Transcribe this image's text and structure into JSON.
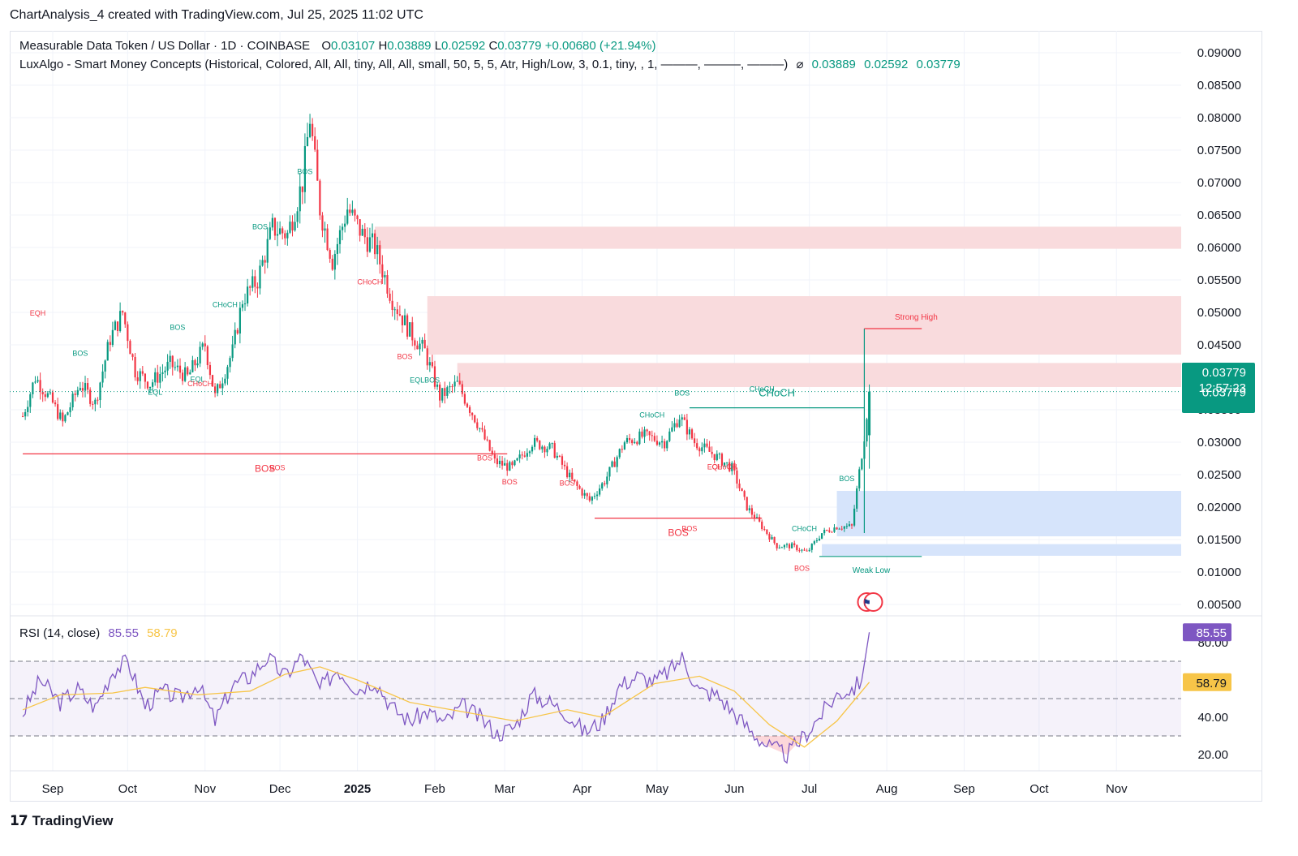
{
  "header": {
    "credit": "ChartAnalysis_4 created with TradingView.com, Jul 25, 2025 11:02 UTC"
  },
  "legend": {
    "symbol": "Measurable Data Token / US Dollar · 1D · COINBASE",
    "o_label": "O",
    "o": "0.03107",
    "h_label": "H",
    "h": "0.03889",
    "l_label": "L",
    "l": "0.02592",
    "c_label": "C",
    "c": "0.03779",
    "change": "+0.00680 (+21.94%)",
    "indicator": "LuxAlgo - Smart Money Concepts (Historical, Colored, All, All, tiny, All, All, small, 50, 5, 5, Atr, High/Low, 3, 0.1, tiny, , 1, ———, ———, ———)",
    "ind_values": [
      "0.03889",
      "0.02592",
      "0.03779"
    ],
    "rsi_label": "RSI (14, close)",
    "rsi_value": "85.55",
    "rsi_ma_value": "58.79"
  },
  "price_badge": {
    "price": "0.03779",
    "countdown": "12:57:23",
    "price2": "0.03779"
  },
  "rsi_badges": {
    "rsi": "85.55",
    "ma": "58.79"
  },
  "footer": {
    "brand": "TradingView"
  },
  "colors": {
    "up": "#089981",
    "down": "#f23645",
    "rsi": "#7e57c2",
    "rsi_ma": "#f7c548",
    "supply": "#f9d9db",
    "demand": "#d4e3fb"
  },
  "chart_data": {
    "type": "candlestick",
    "title": "Measurable Data Token / US Dollar · 1D · COINBASE",
    "y_ticks": [
      "0.09000",
      "0.08500",
      "0.08000",
      "0.07500",
      "0.07000",
      "0.06500",
      "0.06000",
      "0.05500",
      "0.05000",
      "0.04500",
      "0.03500",
      "0.03000",
      "0.02500",
      "0.02000",
      "0.01500",
      "0.01000",
      "0.00500"
    ],
    "ylim": [
      0.0,
      0.092
    ],
    "x_ticks": [
      "Sep",
      "Oct",
      "Nov",
      "Dec",
      "2025",
      "Feb",
      "Mar",
      "Apr",
      "May",
      "Jun",
      "Jul",
      "Aug",
      "Sep",
      "Oct",
      "Nov"
    ],
    "price_path": [
      [
        "2024-08-20",
        0.034
      ],
      [
        "2024-08-25",
        0.04
      ],
      [
        "2024-09-01",
        0.036
      ],
      [
        "2024-09-05",
        0.033
      ],
      [
        "2024-09-12",
        0.039
      ],
      [
        "2024-09-18",
        0.036
      ],
      [
        "2024-09-24",
        0.046
      ],
      [
        "2024-09-29",
        0.05
      ],
      [
        "2024-10-04",
        0.041
      ],
      [
        "2024-10-10",
        0.039
      ],
      [
        "2024-10-18",
        0.042
      ],
      [
        "2024-10-25",
        0.04
      ],
      [
        "2024-11-01",
        0.045
      ],
      [
        "2024-11-05",
        0.037
      ],
      [
        "2024-11-12",
        0.044
      ],
      [
        "2024-11-16",
        0.052
      ],
      [
        "2024-11-22",
        0.055
      ],
      [
        "2024-11-28",
        0.063
      ],
      [
        "2024-12-04",
        0.062
      ],
      [
        "2024-12-10",
        0.07
      ],
      [
        "2024-12-13",
        0.08
      ],
      [
        "2024-12-17",
        0.066
      ],
      [
        "2024-12-22",
        0.058
      ],
      [
        "2024-12-28",
        0.066
      ],
      [
        "2025-01-03",
        0.062
      ],
      [
        "2025-01-08",
        0.06
      ],
      [
        "2025-01-15",
        0.052
      ],
      [
        "2025-01-22",
        0.047
      ],
      [
        "2025-01-28",
        0.044
      ],
      [
        "2025-02-03",
        0.037
      ],
      [
        "2025-02-10",
        0.039
      ],
      [
        "2025-02-18",
        0.033
      ],
      [
        "2025-02-25",
        0.027
      ],
      [
        "2025-03-04",
        0.026
      ],
      [
        "2025-03-12",
        0.03
      ],
      [
        "2025-03-20",
        0.029
      ],
      [
        "2025-03-28",
        0.024
      ],
      [
        "2025-04-04",
        0.021
      ],
      [
        "2025-04-10",
        0.024
      ],
      [
        "2025-04-18",
        0.03
      ],
      [
        "2025-04-26",
        0.031
      ],
      [
        "2025-05-04",
        0.03
      ],
      [
        "2025-05-10",
        0.034
      ],
      [
        "2025-05-16",
        0.03
      ],
      [
        "2025-05-24",
        0.028
      ],
      [
        "2025-05-31",
        0.026
      ],
      [
        "2025-06-06",
        0.02
      ],
      [
        "2025-06-12",
        0.017
      ],
      [
        "2025-06-18",
        0.014
      ],
      [
        "2025-06-24",
        0.014
      ],
      [
        "2025-06-30",
        0.013
      ],
      [
        "2025-07-06",
        0.016
      ],
      [
        "2025-07-12",
        0.017
      ],
      [
        "2025-07-18",
        0.017
      ],
      [
        "2025-07-23",
        0.031
      ],
      [
        "2025-07-25",
        0.03779
      ]
    ],
    "last_candle": {
      "date": "2025-07-25",
      "open": 0.03107,
      "high": 0.03889,
      "low": 0.02592,
      "close": 0.03779
    },
    "zones": [
      {
        "kind": "supply",
        "from": "2025-01-08",
        "to": "right-edge",
        "low": 0.0598,
        "high": 0.0632
      },
      {
        "kind": "supply",
        "from": "2025-01-29",
        "to": "right-edge",
        "low": 0.0435,
        "high": 0.0525
      },
      {
        "kind": "supply",
        "from": "2025-02-10",
        "to": "right-edge",
        "low": 0.0385,
        "high": 0.0422
      },
      {
        "kind": "demand",
        "from": "2025-07-12",
        "to": "right-edge",
        "low": 0.0155,
        "high": 0.0225
      },
      {
        "kind": "demand",
        "from": "2025-07-06",
        "to": "right-edge",
        "low": 0.0125,
        "high": 0.0143
      }
    ],
    "levels": [
      {
        "label": "BOS",
        "color": "red",
        "value": 0.0282,
        "from": "2024-08-20",
        "to": "2025-03-02"
      },
      {
        "label": "BOS",
        "color": "red",
        "value": 0.0183,
        "from": "2025-04-06",
        "to": "2025-06-12"
      },
      {
        "label": "CHoCH",
        "color": "green",
        "value": 0.0353,
        "from": "2025-05-14",
        "to": "2025-07-23"
      },
      {
        "label": "Strong High",
        "color": "red",
        "value": 0.0475,
        "from": "2025-07-23",
        "to": "2025-08-15"
      },
      {
        "label": "Weak Low",
        "color": "green",
        "value": 0.0124,
        "from": "2025-07-05",
        "to": "2025-08-15"
      }
    ],
    "structure_labels": [
      {
        "text": "EQH",
        "color": "red",
        "date": "2024-08-26",
        "value": 0.0495
      },
      {
        "text": "BOS",
        "color": "green",
        "date": "2024-09-12",
        "value": 0.0433
      },
      {
        "text": "EQL",
        "color": "green",
        "date": "2024-10-12",
        "value": 0.0373
      },
      {
        "text": "BOS",
        "color": "green",
        "date": "2024-10-21",
        "value": 0.0473
      },
      {
        "text": "CHoCH",
        "color": "green",
        "date": "2024-11-09",
        "value": 0.0508
      },
      {
        "text": "EQL",
        "color": "green",
        "date": "2024-10-29",
        "value": 0.0393
      },
      {
        "text": "CHoCH",
        "color": "red",
        "date": "2024-10-30",
        "value": 0.0386
      },
      {
        "text": "BOS",
        "color": "green",
        "date": "2024-11-23",
        "value": 0.0628
      },
      {
        "text": "BOS",
        "color": "green",
        "date": "2024-12-11",
        "value": 0.0713
      },
      {
        "text": "CHoCH",
        "color": "red",
        "date": "2025-01-06",
        "value": 0.0543
      },
      {
        "text": "BOS",
        "color": "red",
        "date": "2025-01-20",
        "value": 0.0428
      },
      {
        "text": "EQLBOS",
        "color": "green",
        "date": "2025-01-28",
        "value": 0.0392
      },
      {
        "text": "BOS",
        "color": "red",
        "date": "2025-02-21",
        "value": 0.0272
      },
      {
        "text": "BOS",
        "color": "red",
        "date": "2025-03-03",
        "value": 0.0235
      },
      {
        "text": "BOS",
        "color": "red",
        "date": "2025-03-26",
        "value": 0.0233
      },
      {
        "text": "BOS",
        "color": "green",
        "date": "2025-05-11",
        "value": 0.0372
      },
      {
        "text": "CHoCH",
        "color": "green",
        "date": "2025-04-29",
        "value": 0.0338
      },
      {
        "text": "EQL",
        "color": "red",
        "date": "2025-05-24",
        "value": 0.0258
      },
      {
        "text": "CHoCH",
        "color": "red",
        "date": "2025-05-28",
        "value": 0.0258
      },
      {
        "text": "CHoCH",
        "color": "green",
        "date": "2025-06-29",
        "value": 0.0163
      },
      {
        "text": "BOS",
        "color": "red",
        "date": "2025-06-28",
        "value": 0.0102
      },
      {
        "text": "BOS",
        "color": "green",
        "date": "2025-07-16",
        "value": 0.024
      },
      {
        "text": "CHoCH",
        "color": "green",
        "date": "2025-06-12",
        "value": 0.0378
      },
      {
        "text": "BOS",
        "color": "red",
        "date": "2024-11-30",
        "value": 0.0257
      },
      {
        "text": "BOS",
        "color": "red",
        "date": "2025-05-14",
        "value": 0.0163
      }
    ],
    "rsi": {
      "label": "RSI (14, close)",
      "y_ticks": [
        "80.00",
        "40.00",
        "20.00"
      ],
      "bands": [
        30,
        50,
        70
      ],
      "ylim": [
        10,
        90
      ],
      "path": [
        [
          "2024-08-20",
          42
        ],
        [
          "2024-08-27",
          60
        ],
        [
          "2024-09-04",
          48
        ],
        [
          "2024-09-11",
          55
        ],
        [
          "2024-09-18",
          45
        ],
        [
          "2024-09-25",
          65
        ],
        [
          "2024-10-01",
          70
        ],
        [
          "2024-10-08",
          46
        ],
        [
          "2024-10-15",
          54
        ],
        [
          "2024-10-22",
          50
        ],
        [
          "2024-10-29",
          58
        ],
        [
          "2024-11-05",
          38
        ],
        [
          "2024-11-12",
          57
        ],
        [
          "2024-11-19",
          62
        ],
        [
          "2024-11-26",
          72
        ],
        [
          "2024-12-03",
          62
        ],
        [
          "2024-12-10",
          73
        ],
        [
          "2024-12-17",
          55
        ],
        [
          "2024-12-24",
          66
        ],
        [
          "2025-01-01",
          55
        ],
        [
          "2025-01-08",
          60
        ],
        [
          "2025-01-15",
          45
        ],
        [
          "2025-01-22",
          38
        ],
        [
          "2025-01-29",
          43
        ],
        [
          "2025-02-05",
          37
        ],
        [
          "2025-02-12",
          46
        ],
        [
          "2025-02-19",
          40
        ],
        [
          "2025-02-26",
          31
        ],
        [
          "2025-03-05",
          35
        ],
        [
          "2025-03-12",
          52
        ],
        [
          "2025-03-19",
          48
        ],
        [
          "2025-03-26",
          42
        ],
        [
          "2025-04-02",
          32
        ],
        [
          "2025-04-09",
          38
        ],
        [
          "2025-04-16",
          57
        ],
        [
          "2025-04-23",
          62
        ],
        [
          "2025-04-30",
          59
        ],
        [
          "2025-05-07",
          66
        ],
        [
          "2025-05-11",
          72
        ],
        [
          "2025-05-18",
          54
        ],
        [
          "2025-05-25",
          52
        ],
        [
          "2025-06-01",
          42
        ],
        [
          "2025-06-08",
          32
        ],
        [
          "2025-06-15",
          24
        ],
        [
          "2025-06-22",
          20
        ],
        [
          "2025-06-29",
          30
        ],
        [
          "2025-07-06",
          42
        ],
        [
          "2025-07-12",
          52
        ],
        [
          "2025-07-19",
          56
        ],
        [
          "2025-07-22",
          60
        ],
        [
          "2025-07-25",
          85.55
        ]
      ],
      "ma_path": [
        [
          "2024-08-20",
          44
        ],
        [
          "2024-09-04",
          52
        ],
        [
          "2024-09-25",
          53
        ],
        [
          "2024-10-08",
          56
        ],
        [
          "2024-10-29",
          52
        ],
        [
          "2024-11-19",
          54
        ],
        [
          "2024-12-03",
          63
        ],
        [
          "2024-12-17",
          67
        ],
        [
          "2025-01-01",
          60
        ],
        [
          "2025-01-22",
          48
        ],
        [
          "2025-02-12",
          43
        ],
        [
          "2025-03-05",
          38
        ],
        [
          "2025-03-26",
          44
        ],
        [
          "2025-04-09",
          40
        ],
        [
          "2025-04-30",
          58
        ],
        [
          "2025-05-18",
          62
        ],
        [
          "2025-06-01",
          54
        ],
        [
          "2025-06-15",
          36
        ],
        [
          "2025-06-29",
          24
        ],
        [
          "2025-07-12",
          38
        ],
        [
          "2025-07-25",
          58.79
        ]
      ]
    }
  }
}
